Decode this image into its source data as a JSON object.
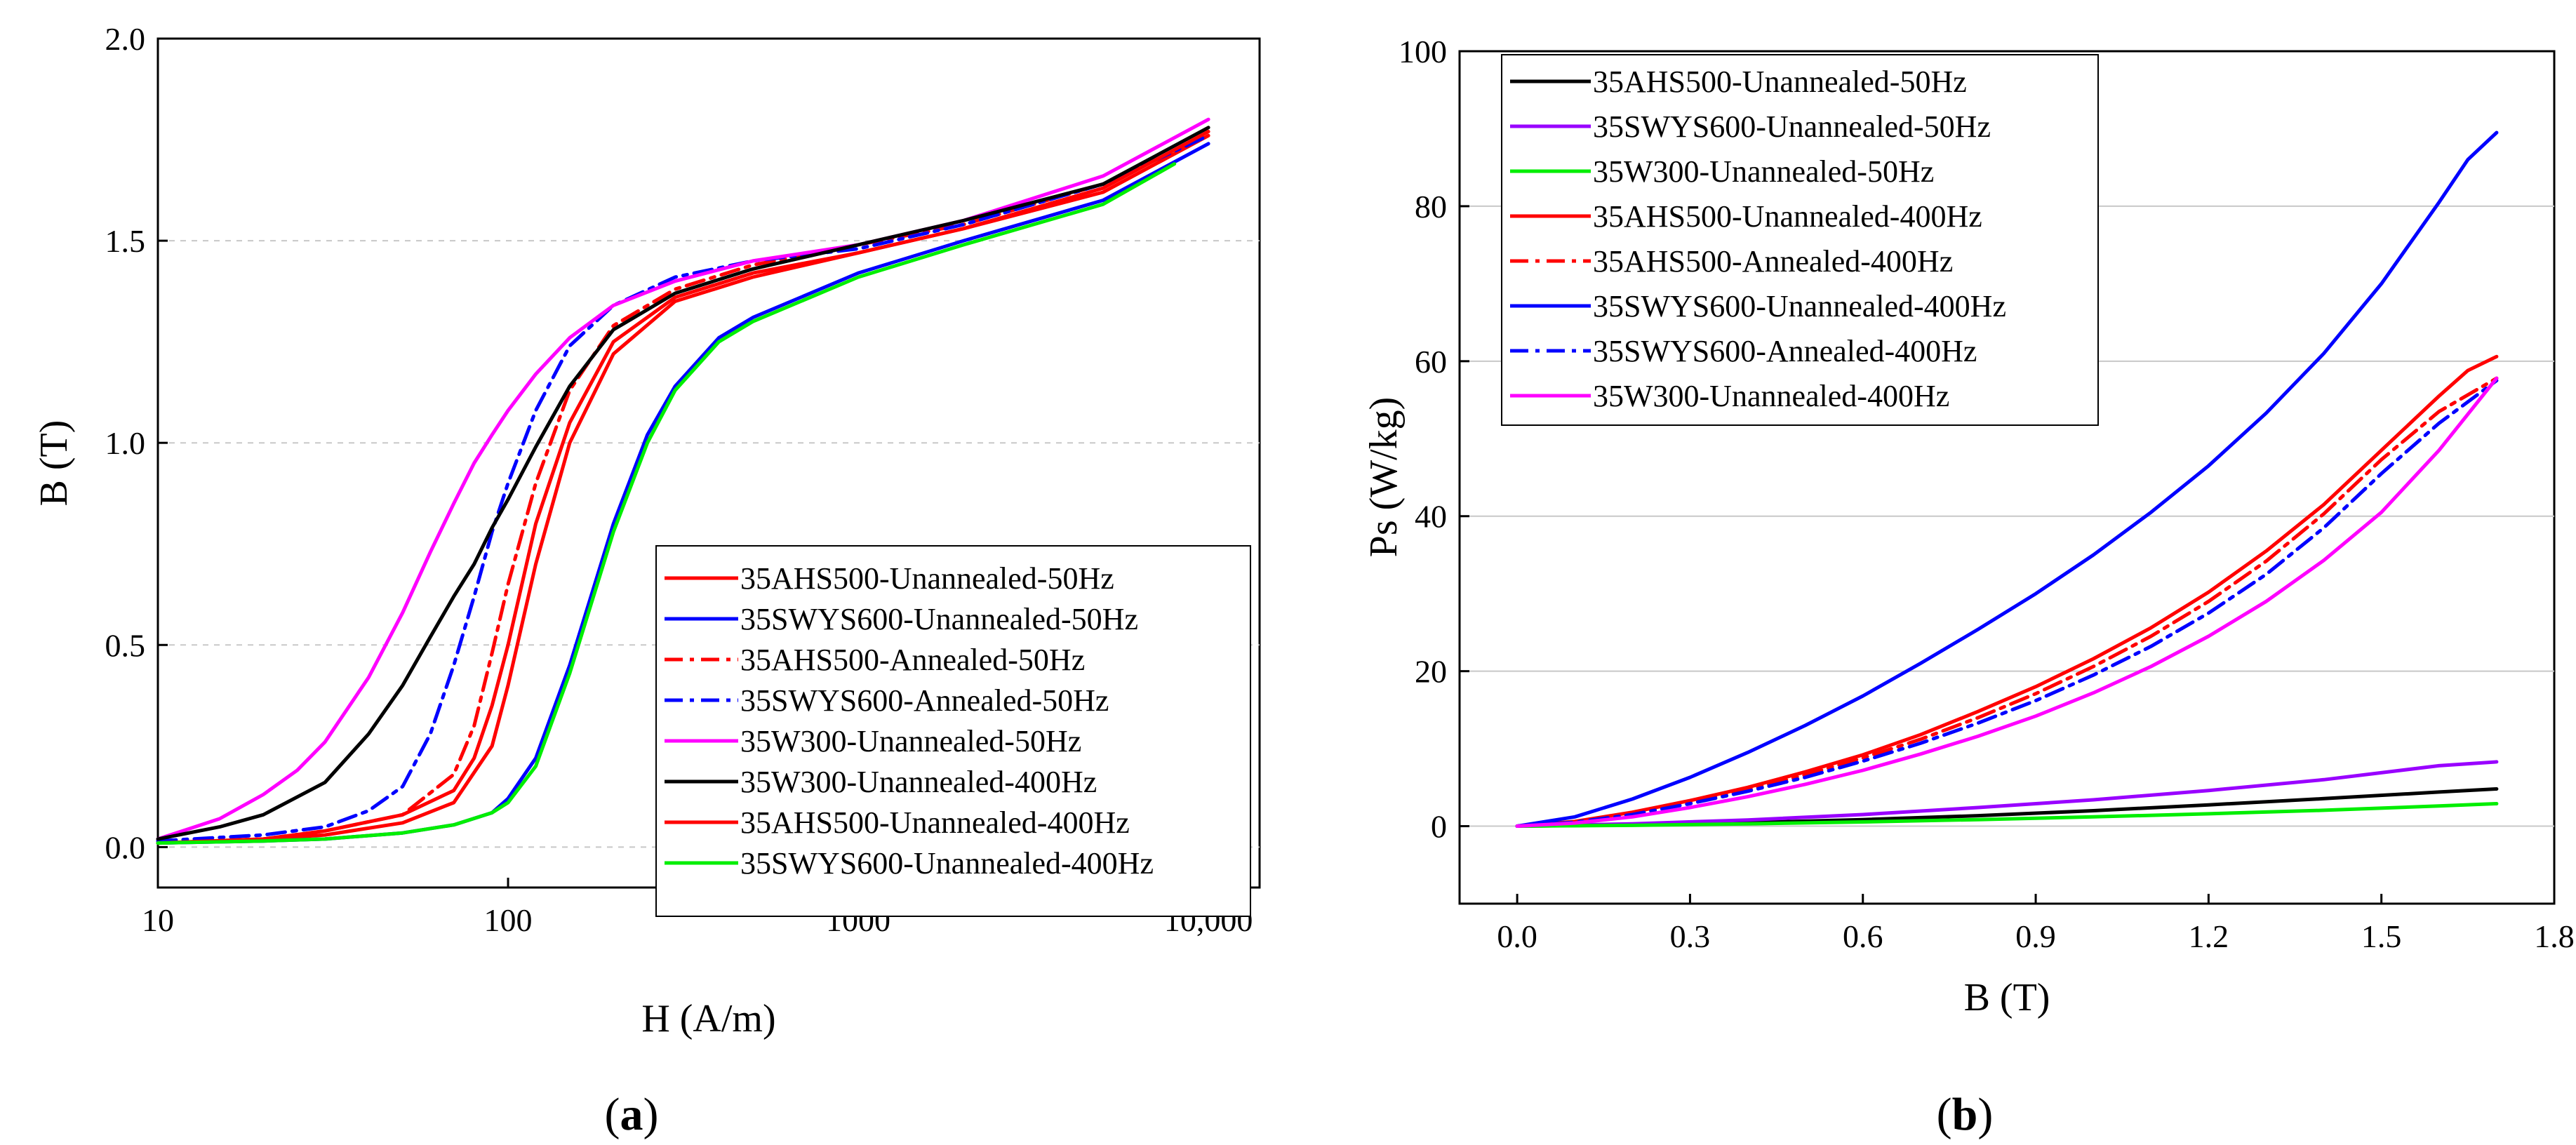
{
  "chart_data": [
    {
      "panel_label": "a",
      "type": "line",
      "xlabel": "H (A/m)",
      "ylabel": "B (T)",
      "x_scale": "log",
      "xlim": [
        10,
        14000
      ],
      "ylim": [
        -0.1,
        2.0
      ],
      "x_ticks": [
        10,
        100,
        1000,
        10000
      ],
      "x_tick_labels": [
        "10",
        "100",
        "1000",
        "10,000"
      ],
      "y_ticks": [
        0,
        0.5,
        1.0,
        1.5,
        2.0
      ],
      "y_tick_labels": [
        "0.0",
        "0.5",
        "1.0",
        "1.5",
        "2.0"
      ],
      "grid": "horizontal dashed",
      "legend_position": "bottom-right",
      "series": [
        {
          "name": "35AHS500-Unannealed-50Hz",
          "color": "#ff0000",
          "dash": "solid",
          "x": [
            10,
            20,
            30,
            50,
            70,
            90,
            100,
            120,
            150,
            200,
            300,
            500,
            1000,
            2000,
            5000,
            10000
          ],
          "y": [
            0.01,
            0.02,
            0.03,
            0.06,
            0.11,
            0.25,
            0.4,
            0.7,
            1.0,
            1.22,
            1.35,
            1.41,
            1.47,
            1.53,
            1.62,
            1.76
          ]
        },
        {
          "name": "35SWYS600-Unannealed-50Hz",
          "color": "#0000ff",
          "dash": "solid",
          "x": [
            10,
            20,
            30,
            50,
            70,
            90,
            100,
            120,
            150,
            200,
            250,
            300,
            400,
            500,
            1000,
            2000,
            5000,
            10000
          ],
          "y": [
            0.01,
            0.015,
            0.02,
            0.035,
            0.055,
            0.085,
            0.12,
            0.22,
            0.45,
            0.8,
            1.02,
            1.14,
            1.26,
            1.31,
            1.42,
            1.5,
            1.6,
            1.74
          ]
        },
        {
          "name": "35AHS500-Annealed-50Hz",
          "color": "#ff0000",
          "dash": "dashdot",
          "x": [
            10,
            20,
            30,
            50,
            70,
            80,
            90,
            100,
            120,
            150,
            200,
            300,
            500,
            1000,
            2000,
            5000,
            10000
          ],
          "y": [
            0.01,
            0.02,
            0.04,
            0.08,
            0.18,
            0.3,
            0.48,
            0.65,
            0.9,
            1.13,
            1.29,
            1.38,
            1.44,
            1.49,
            1.54,
            1.64,
            1.76
          ]
        },
        {
          "name": "35SWYS600-Annealed-50Hz",
          "color": "#0000ff",
          "dash": "dashdot",
          "x": [
            10,
            20,
            30,
            40,
            50,
            60,
            70,
            80,
            90,
            100,
            120,
            150,
            200,
            300,
            500,
            1000,
            2000,
            5000,
            10000
          ],
          "y": [
            0.015,
            0.03,
            0.05,
            0.09,
            0.15,
            0.28,
            0.45,
            0.62,
            0.78,
            0.9,
            1.08,
            1.24,
            1.34,
            1.41,
            1.45,
            1.48,
            1.54,
            1.64,
            1.76
          ]
        },
        {
          "name": "35W300-Unannealed-50Hz",
          "color": "#ff00ff",
          "dash": "solid",
          "x": [
            10,
            15,
            20,
            25,
            30,
            40,
            50,
            60,
            70,
            80,
            90,
            100,
            120,
            150,
            200,
            300,
            500,
            1000,
            2000,
            5000,
            10000
          ],
          "y": [
            0.02,
            0.07,
            0.13,
            0.19,
            0.26,
            0.42,
            0.58,
            0.73,
            0.85,
            0.95,
            1.02,
            1.08,
            1.17,
            1.26,
            1.34,
            1.4,
            1.45,
            1.49,
            1.55,
            1.66,
            1.8
          ]
        },
        {
          "name": "35W300-Unannealed-400Hz",
          "color": "#000000",
          "dash": "solid",
          "x": [
            10,
            15,
            20,
            30,
            40,
            50,
            60,
            70,
            80,
            90,
            100,
            120,
            150,
            200,
            300,
            500,
            1000,
            2000,
            5000,
            10000
          ],
          "y": [
            0.02,
            0.05,
            0.08,
            0.16,
            0.28,
            0.4,
            0.52,
            0.62,
            0.7,
            0.79,
            0.86,
            0.99,
            1.14,
            1.28,
            1.37,
            1.43,
            1.49,
            1.55,
            1.64,
            1.78
          ]
        },
        {
          "name": "35AHS500-Unannealed-400Hz",
          "color": "#ff0000",
          "dash": "solid",
          "x": [
            10,
            20,
            30,
            50,
            70,
            80,
            90,
            100,
            120,
            150,
            200,
            300,
            500,
            1000,
            2000,
            5000,
            10000
          ],
          "y": [
            0.01,
            0.02,
            0.04,
            0.08,
            0.14,
            0.22,
            0.35,
            0.5,
            0.8,
            1.05,
            1.25,
            1.36,
            1.42,
            1.47,
            1.53,
            1.63,
            1.77
          ]
        },
        {
          "name": "35SWYS600-Unannealed-400Hz",
          "color": "#00ee00",
          "dash": "solid",
          "x": [
            10,
            20,
            30,
            50,
            70,
            90,
            100,
            120,
            150,
            200,
            250,
            300,
            400,
            500,
            1000,
            2000,
            5000,
            8000
          ],
          "y": [
            0.01,
            0.015,
            0.02,
            0.035,
            0.055,
            0.085,
            0.11,
            0.2,
            0.43,
            0.78,
            1.0,
            1.13,
            1.25,
            1.3,
            1.41,
            1.49,
            1.59,
            1.69
          ]
        }
      ]
    },
    {
      "panel_label": "b",
      "type": "line",
      "xlabel": "B (T)",
      "ylabel": "Ps (W/kg)",
      "xlim": [
        -0.1,
        1.8
      ],
      "ylim": [
        -10,
        100
      ],
      "x_ticks": [
        0,
        0.3,
        0.6,
        0.9,
        1.2,
        1.5,
        1.8
      ],
      "x_tick_labels": [
        "0.0",
        "0.3",
        "0.6",
        "0.9",
        "1.2",
        "1.5",
        "1.8"
      ],
      "y_ticks": [
        0,
        20,
        40,
        60,
        80,
        100
      ],
      "y_tick_labels": [
        "0",
        "20",
        "40",
        "60",
        "80",
        "100"
      ],
      "grid": "horizontal",
      "legend_position": "top-left",
      "series": [
        {
          "name": "35AHS500-Unannealed-50Hz",
          "color": "#000000",
          "dash": "solid",
          "x": [
            0,
            0.2,
            0.4,
            0.6,
            0.8,
            1.0,
            1.2,
            1.4,
            1.6,
            1.7
          ],
          "y": [
            0,
            0.15,
            0.45,
            0.85,
            1.35,
            2.0,
            2.75,
            3.55,
            4.4,
            4.8
          ]
        },
        {
          "name": "35SWYS600-Unannealed-50Hz",
          "color": "#9900ff",
          "dash": "solid",
          "x": [
            0,
            0.2,
            0.4,
            0.6,
            0.8,
            1.0,
            1.2,
            1.4,
            1.6,
            1.7
          ],
          "y": [
            0,
            0.3,
            0.8,
            1.5,
            2.4,
            3.4,
            4.6,
            6.0,
            7.8,
            8.3
          ]
        },
        {
          "name": "35W300-Unannealed-50Hz",
          "color": "#00ee00",
          "dash": "solid",
          "x": [
            0,
            0.2,
            0.4,
            0.6,
            0.8,
            1.0,
            1.2,
            1.4,
            1.6,
            1.7
          ],
          "y": [
            0,
            0.1,
            0.3,
            0.55,
            0.85,
            1.2,
            1.6,
            2.05,
            2.6,
            2.9
          ]
        },
        {
          "name": "35AHS500-Unannealed-400Hz",
          "color": "#ff0000",
          "dash": "solid",
          "x": [
            0,
            0.1,
            0.2,
            0.3,
            0.4,
            0.5,
            0.6,
            0.7,
            0.8,
            0.9,
            1.0,
            1.1,
            1.2,
            1.3,
            1.4,
            1.5,
            1.6,
            1.65,
            1.7
          ],
          "y": [
            0,
            0.6,
            1.8,
            3.3,
            5.0,
            7.0,
            9.2,
            11.8,
            14.8,
            18.0,
            21.6,
            25.6,
            30.2,
            35.5,
            41.5,
            48.5,
            55.5,
            58.8,
            60.6
          ]
        },
        {
          "name": "35AHS500-Annealed-400Hz",
          "color": "#ff0000",
          "dash": "dashdot",
          "x": [
            0,
            0.1,
            0.2,
            0.3,
            0.4,
            0.5,
            0.6,
            0.7,
            0.8,
            0.9,
            1.0,
            1.1,
            1.2,
            1.3,
            1.4,
            1.5,
            1.6,
            1.7
          ],
          "y": [
            0,
            0.5,
            1.6,
            3.1,
            4.7,
            6.6,
            8.8,
            11.2,
            14.0,
            17.1,
            20.6,
            24.5,
            29.0,
            34.2,
            40.3,
            47.3,
            53.5,
            57.8
          ]
        },
        {
          "name": "35SWYS600-Unannealed-400Hz",
          "color": "#0000ff",
          "dash": "solid",
          "x": [
            0,
            0.1,
            0.2,
            0.3,
            0.4,
            0.5,
            0.6,
            0.7,
            0.8,
            0.9,
            1.0,
            1.1,
            1.2,
            1.3,
            1.4,
            1.5,
            1.6,
            1.65,
            1.7
          ],
          "y": [
            0,
            1.2,
            3.5,
            6.3,
            9.5,
            13.0,
            16.8,
            21.0,
            25.4,
            30.0,
            35.0,
            40.5,
            46.5,
            53.3,
            61.0,
            70.0,
            80.5,
            86.0,
            89.5
          ]
        },
        {
          "name": "35SWYS600-Annealed-400Hz",
          "color": "#0000ff",
          "dash": "dashdot",
          "x": [
            0,
            0.1,
            0.2,
            0.3,
            0.4,
            0.5,
            0.6,
            0.7,
            0.8,
            0.9,
            1.0,
            1.1,
            1.2,
            1.3,
            1.4,
            1.5,
            1.6,
            1.7
          ],
          "y": [
            0,
            0.5,
            1.5,
            2.9,
            4.5,
            6.3,
            8.4,
            10.7,
            13.3,
            16.2,
            19.5,
            23.2,
            27.5,
            32.5,
            38.5,
            45.5,
            52.0,
            57.5
          ]
        },
        {
          "name": "35W300-Unannealed-400Hz",
          "color": "#ff00ff",
          "dash": "solid",
          "x": [
            0,
            0.1,
            0.2,
            0.3,
            0.4,
            0.5,
            0.6,
            0.7,
            0.8,
            0.9,
            1.0,
            1.1,
            1.2,
            1.3,
            1.4,
            1.5,
            1.6,
            1.7
          ],
          "y": [
            0,
            0.4,
            1.2,
            2.4,
            3.8,
            5.4,
            7.2,
            9.3,
            11.6,
            14.2,
            17.2,
            20.6,
            24.5,
            29.0,
            34.3,
            40.5,
            48.5,
            57.8
          ]
        }
      ]
    }
  ]
}
